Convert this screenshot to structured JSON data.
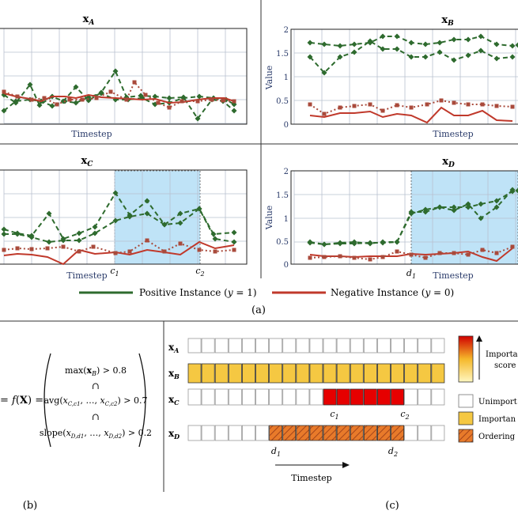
{
  "panel_a": {
    "caption": "(a)",
    "x_label": "Timestep",
    "y_label": "Value",
    "y_ticks": [
      "0",
      "0.5",
      "1",
      "1.5",
      "2"
    ],
    "legend": {
      "positive": "Positive Instance (y = 1)",
      "negative": "Negative Instance (y = 0)"
    },
    "colors": {
      "positive": "#2e6b2e",
      "negative": "#c0392b",
      "highlight": "#bfe3f7"
    },
    "subplots": {
      "A": {
        "title": "x_A"
      },
      "B": {
        "title": "x_B"
      },
      "C": {
        "title": "x_C",
        "marker_start": "c_1",
        "marker_end": "c_2"
      },
      "D": {
        "title": "x_D",
        "marker_start": "d_1",
        "marker_end": ""
      }
    }
  },
  "panel_b": {
    "caption": "(b)",
    "lhs": "= f(X) =",
    "conditions": [
      "max(x_B) > 0.8",
      "∩",
      "avg(x_C,c1, …, x_C,c2) > 0.7",
      "∩",
      "slope(x_D,d1, …, x_D,d2) > 0.2"
    ]
  },
  "panel_c": {
    "caption": "(c)",
    "rows": [
      "x_A",
      "x_B",
      "x_C",
      "x_D"
    ],
    "c_labels": [
      "c_1",
      "c_2"
    ],
    "d_labels": [
      "d_1",
      "d_2"
    ],
    "x_label": "Timestep",
    "legend": {
      "importance_score": "Importa... score",
      "unimportant": "Unimport...",
      "important": "Importan...",
      "ordering": "Ordering"
    }
  }
}
